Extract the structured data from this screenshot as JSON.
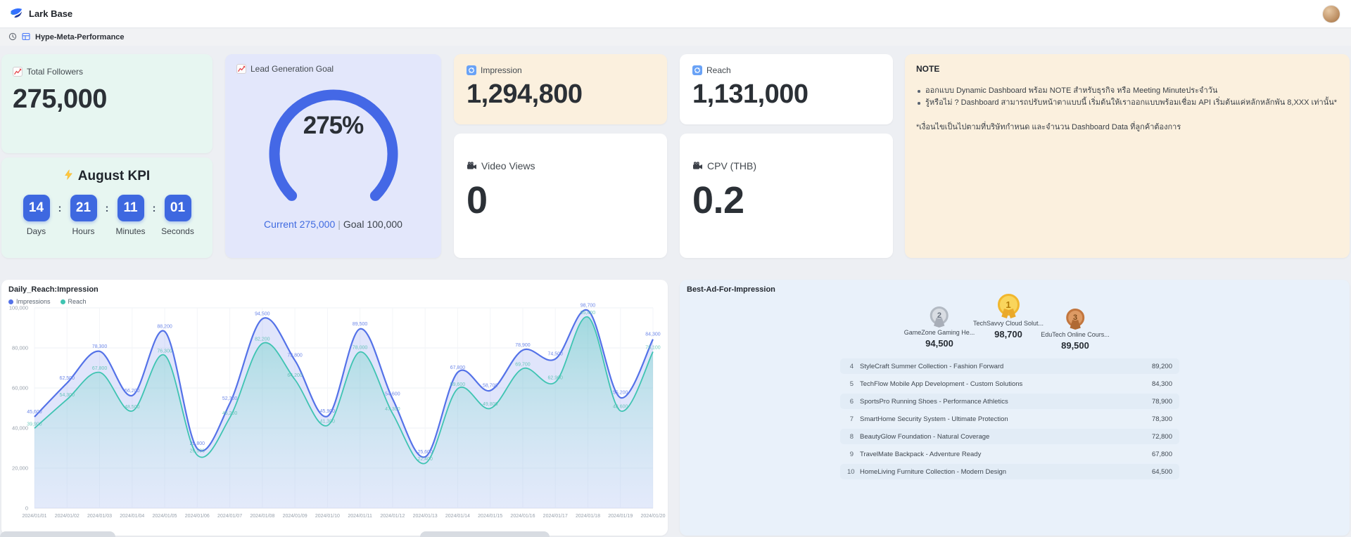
{
  "app": {
    "name": "Lark Base",
    "breadcrumb": "Hype-Meta-Performance",
    "logo_icon": "lark-logo-icon",
    "history_icon": "history-icon",
    "doc_icon": "base-doc-icon"
  },
  "cards": {
    "total_followers": {
      "icon": "chart-increasing-icon",
      "label": "Total Followers",
      "value": "275,000"
    },
    "august_kpi": {
      "icon": "zap-icon",
      "title": "August KPI",
      "separator": ":",
      "countdown": [
        {
          "value": "14",
          "label": "Days"
        },
        {
          "value": "21",
          "label": "Hours"
        },
        {
          "value": "11",
          "label": "Minutes"
        },
        {
          "value": "01",
          "label": "Seconds"
        }
      ]
    },
    "lead_goal": {
      "icon": "chart-increasing-icon",
      "label": "Lead Generation Goal",
      "percent": "275%",
      "current_label": "Current 275,000",
      "divider": "|",
      "goal_label": "Goal 100,000",
      "gauge_color": "#4468e6",
      "sweep_degrees": 270
    },
    "impression": {
      "icon": "repeat-icon",
      "label": "Impression",
      "value": "1,294,800"
    },
    "reach": {
      "icon": "repeat-icon",
      "label": "Reach",
      "value": "1,131,000"
    },
    "video_views": {
      "icon": "movie-camera-icon",
      "label": "Video Views",
      "value": "0"
    },
    "cpv": {
      "icon": "movie-camera-icon",
      "label": "CPV (THB)",
      "value": "0.2"
    },
    "note": {
      "title": "NOTE",
      "bullets": [
        "ออกแบบ Dynamic Dashboard พร้อม NOTE สำหรับธุรกิจ หรือ Meeting Minuteประจำวัน",
        "รู้หรือไม่ ? Dashboard สามารถปรับหน้าตาแบบนี้ เริ่มต้นให้เราออกแบบพร้อมเชื่อม API เริ่มต้นแค่หลักหลักพัน 8,XXX เท่านั้น*"
      ],
      "footnote": "*เงื่อนไขเป็นไปตามที่บริษัทกำหนด และจำนวน Dashboard Data ที่ลูกค้าต้องการ"
    }
  },
  "chart_data": {
    "type": "area",
    "title": "Daily_Reach:Impression",
    "x": [
      "2024/01/01",
      "2024/01/02",
      "2024/01/03",
      "2024/01/04",
      "2024/01/05",
      "2024/01/06",
      "2024/01/07",
      "2024/01/08",
      "2024/01/09",
      "2024/01/10",
      "2024/01/11",
      "2024/01/12",
      "2024/01/13",
      "2024/01/14",
      "2024/01/15",
      "2024/01/16",
      "2024/01/17",
      "2024/01/18",
      "2024/01/19",
      "2024/01/20"
    ],
    "ylim": [
      0,
      100000
    ],
    "grid": true,
    "legend_position": "top-left",
    "y_tick_values": [
      0,
      20000,
      40000,
      60000,
      80000,
      100000
    ],
    "y_tick_labels": [
      "0",
      "20,000",
      "40,000",
      "60,000",
      "80,000",
      "100,000"
    ],
    "series": [
      {
        "name": "Impressions",
        "color": "#5472e8",
        "fill": "rgba(116,138,236,0.22)",
        "values": [
          45600,
          62500,
          78300,
          56200,
          88200,
          29800,
          52300,
          94500,
          73800,
          45900,
          89500,
          54600,
          25600,
          67800,
          58700,
          78900,
          74500,
          98700,
          55200,
          84300
        ],
        "labels": [
          "45,600",
          "62,500",
          "78,300",
          "56,200",
          "88,200",
          "29,800",
          "52,300",
          "94,500",
          "73,800",
          "45,900",
          "89,500",
          "54,600",
          "25,600",
          "67,800",
          "58,700",
          "78,900",
          "74,500",
          "98,700",
          "55,200",
          "84,300"
        ]
      },
      {
        "name": "Reach",
        "color": "#3fc4b2",
        "fill": "teal-gradient",
        "values": [
          39900,
          54300,
          67800,
          48500,
          76300,
          26500,
          45200,
          82200,
          64200,
          41300,
          78000,
          47300,
          22400,
          59600,
          49800,
          69700,
          62900,
          95400,
          48600,
          78100
        ],
        "labels": [
          "39,900",
          "54,300",
          "67,800",
          "48,500",
          "76,300",
          "26,500",
          "45,200",
          "82,200",
          "64,200",
          "41,300",
          "78,000",
          "47,300",
          "22,400",
          "59,600",
          "49,800",
          "69,700",
          "62,900",
          "95,400",
          "48,600",
          "78,100"
        ]
      }
    ]
  },
  "best_ads": {
    "title": "Best-Ad-For-Impression",
    "podium": [
      {
        "rank": "2",
        "tier": "silver",
        "name": "GameZone Gaming He...",
        "value": "94,500"
      },
      {
        "rank": "1",
        "tier": "gold",
        "name": "TechSavvy Cloud Solut...",
        "value": "98,700"
      },
      {
        "rank": "3",
        "tier": "bronze",
        "name": "EduTech Online Cours...",
        "value": "89,500"
      }
    ],
    "rows": [
      {
        "rank": "4",
        "name": "StyleCraft Summer Collection - Fashion Forward",
        "value": "89,200"
      },
      {
        "rank": "5",
        "name": "TechFlow Mobile App Development - Custom Solutions",
        "value": "84,300"
      },
      {
        "rank": "6",
        "name": "SportsPro Running Shoes - Performance Athletics",
        "value": "78,900"
      },
      {
        "rank": "7",
        "name": "SmartHome Security System - Ultimate Protection",
        "value": "78,300"
      },
      {
        "rank": "8",
        "name": "BeautyGlow Foundation - Natural Coverage",
        "value": "72,800"
      },
      {
        "rank": "9",
        "name": "TravelMate Backpack - Adventure Ready",
        "value": "67,800"
      },
      {
        "rank": "10",
        "name": "HomeLiving Furniture Collection - Modern Design",
        "value": "64,500"
      }
    ]
  },
  "colors": {
    "mint_card": "#e7f6f1",
    "periwinkle_card": "#e3e7fb",
    "peach_card": "#fbf0de",
    "azure_card": "#e9f1fa",
    "countdown_tile": "#3e68e0"
  }
}
